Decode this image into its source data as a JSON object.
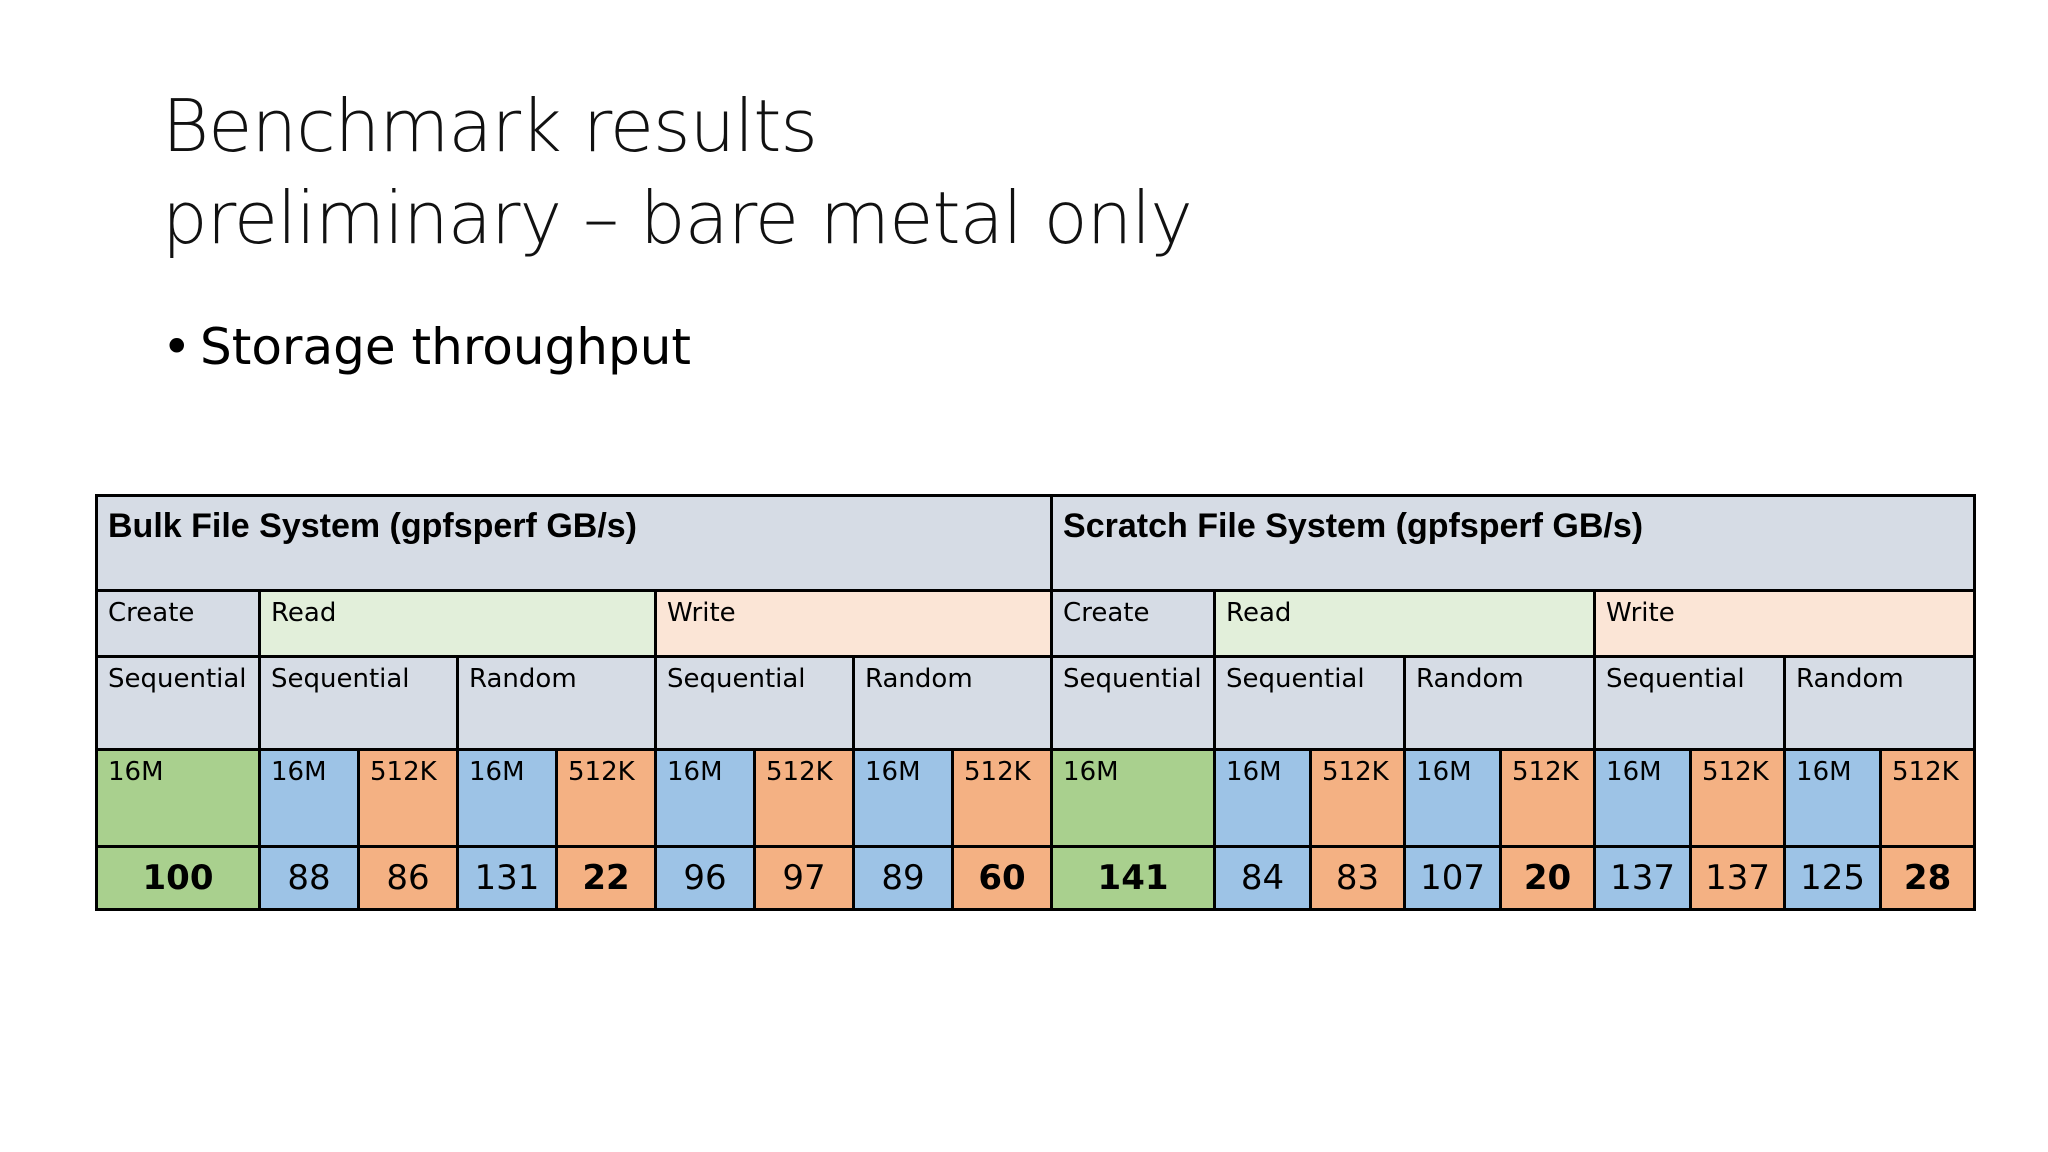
{
  "slide": {
    "title_line1": "Benchmark results",
    "title_line2": "preliminary – bare metal only",
    "bullet": "Storage throughput"
  },
  "table": {
    "bulk": {
      "header": "Bulk File System (gpfsperf GB/s)",
      "create": "Create",
      "read": "Read",
      "write": "Write",
      "seq": "Sequential",
      "rand": "Random",
      "s16m": "16M",
      "s512k": "512K",
      "values": {
        "create_seq_16m": "100",
        "read_seq_16m": "88",
        "read_seq_512k": "86",
        "read_rand_16m": "131",
        "read_rand_512k": "22",
        "write_seq_16m": "96",
        "write_seq_512k": "97",
        "write_rand_16m": "89",
        "write_rand_512k": "60"
      }
    },
    "scratch": {
      "header": "Scratch File System (gpfsperf GB/s)",
      "create": "Create",
      "read": "Read",
      "write": "Write",
      "seq": "Sequential",
      "rand": "Random",
      "s16m": "16M",
      "s512k": "512K",
      "values": {
        "create_seq_16m": "141",
        "read_seq_16m": "84",
        "read_seq_512k": "83",
        "read_rand_16m": "107",
        "read_rand_512k": "20",
        "write_seq_16m": "137",
        "write_seq_512k": "137",
        "write_rand_16m": "125",
        "write_rand_512k": "28"
      }
    }
  },
  "colors": {
    "header_gray": "#d6dce5",
    "read_light_green": "#e2efda",
    "write_peach": "#fbe5d6",
    "create_green": "#a9d08e",
    "size_16m_blue": "#9dc3e6",
    "size_512k_orange": "#f4b183"
  }
}
